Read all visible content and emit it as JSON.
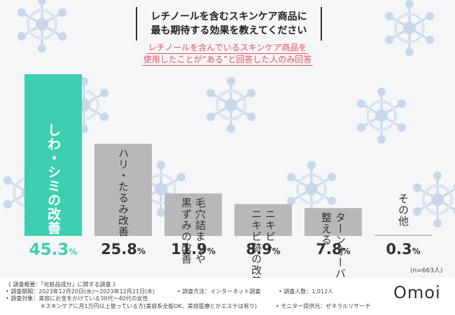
{
  "title": {
    "line1": "レチノールを含むスキンケア商品に",
    "line2": "最も期待する効果を教えてください"
  },
  "subtitle": {
    "line1": "レチノールを含んでいるスキンケア商品を",
    "line2": "使用したことが“ある”と回答した人のみ回答"
  },
  "colors": {
    "highlight": "#3ecfb3",
    "bar": "#b8b8b8",
    "subtitle": "#e8505b",
    "pattern": "#c9d7ea"
  },
  "chart_data": {
    "type": "bar",
    "title": "レチノールを含むスキンケア商品に最も期待する効果を教えてください",
    "categories": [
      "しわ・シミの改善",
      "ハリ・たるみ改善",
      "毛穴詰まりや黒ずみの改善",
      "ニキビ・ニキビ跡の改善",
      "ターンオーバーを整える",
      "その他"
    ],
    "label_lines": [
      [
        "しわ・シミの改善"
      ],
      [
        "ハリ・たるみ改善"
      ],
      [
        "毛穴詰まりや",
        "黒ずみの改善"
      ],
      [
        "ニキビ・",
        "ニキビ跡の改善"
      ],
      [
        "ターンオーバーを",
        "整える"
      ],
      [
        "その他"
      ]
    ],
    "values": [
      45.3,
      25.8,
      11.9,
      8.9,
      7.8,
      0.3
    ],
    "value_labels": [
      "45.3",
      "25.8",
      "11.9",
      "8.9",
      "7.8",
      "0.3"
    ],
    "unit": "%",
    "ylim": [
      0,
      45.3
    ],
    "grid": false,
    "note": "(n=663人)"
  },
  "footer": {
    "line1": "《 調査概要：「化粧品成分」に関する調査 》",
    "period": "• 調査期間：2023年12月20日(水)～2023年12月21日(木)",
    "method": "• 調査方法：インターネット調査",
    "people": "• 調査人数：1,012人",
    "target": "• 調査対象：美容にお金をかけている30代～40代の女性",
    "target_note": "※スキンケアに月1万円以上使っている方(美容系全般OK、美容医療とかエステは有り)",
    "provider": "• モニター提供元：ゼネラルリサーチ"
  },
  "logo": "Omoi"
}
